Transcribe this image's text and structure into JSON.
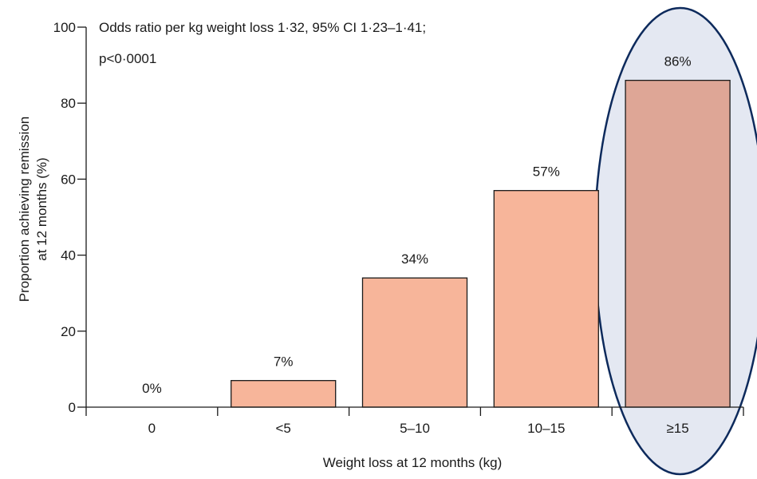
{
  "chart_data": {
    "type": "bar",
    "categories": [
      "0",
      "<5",
      "5–10",
      "10–15",
      "≥15"
    ],
    "values": [
      0,
      7,
      34,
      57,
      86
    ],
    "data_labels": [
      "0%",
      "7%",
      "34%",
      "57%",
      "86%"
    ],
    "xlabel": "Weight loss at 12 months (kg)",
    "ylabel_lines": [
      "Proportion achieving remission",
      "at 12 months (%)"
    ],
    "ylim": [
      0,
      100
    ],
    "yticks": [
      0,
      20,
      40,
      60,
      80,
      100
    ],
    "annotation_lines": [
      "Odds ratio per kg weight loss 1·32, 95% CI 1·23–1·41;",
      "p<0·0001"
    ],
    "highlight_category": "≥15",
    "grid": false,
    "colors": {
      "bar": "#f7b59a",
      "bar_highlighted": "#dea696",
      "bar_stroke": "#1a1a1a",
      "highlight_fill": "#e4e8f2",
      "highlight_stroke": "#0d2a5c"
    }
  }
}
